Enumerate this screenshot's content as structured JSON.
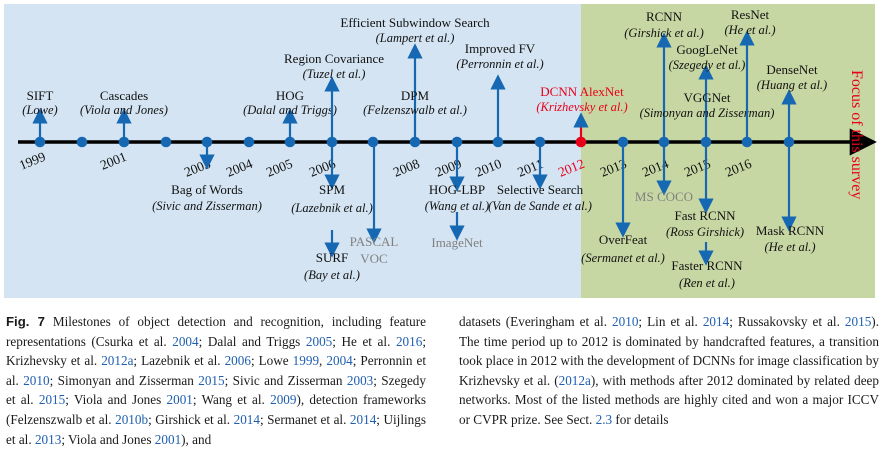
{
  "colors": {
    "left_panel": "#d4e4f2",
    "right_panel": "#c7d7a3",
    "axis": "#000000",
    "dot": "#1668b3",
    "arrow": "#1668b3",
    "red": "#e8001a",
    "gray_text": "#808080",
    "label": "#111111"
  },
  "timeline": {
    "years": [
      "1999",
      "2001",
      "2003",
      "2004",
      "2005",
      "2006",
      "2008",
      "2009",
      "2010",
      "2011",
      "2012",
      "2013",
      "2014",
      "2015",
      "2016"
    ],
    "focus_label": "Focus of this survey"
  },
  "milestones": [
    {
      "name": "SIFT",
      "authors": "(Lowe)",
      "dir": "up"
    },
    {
      "name": "Cascades",
      "authors": "(Viola and Jones)",
      "dir": "up"
    },
    {
      "name": "HOG",
      "authors": "(Dalal and Triggs)",
      "dir": "up"
    },
    {
      "name": "Region Covariance",
      "authors": "(Tuzel et al.)",
      "dir": "up"
    },
    {
      "name": "Efficient Subwindow Search",
      "authors": "(Lampert et al.)",
      "dir": "up"
    },
    {
      "name": "DPM",
      "authors": "(Felzenszwalb et al.)",
      "dir": "up"
    },
    {
      "name": "Improved FV",
      "authors": "(Perronnin et al.)",
      "dir": "up"
    },
    {
      "name": "DCNN AlexNet",
      "authors": "(Krizhevsky et al.)",
      "dir": "up",
      "highlight": true
    },
    {
      "name": "RCNN",
      "authors": "(Girshick et al.)",
      "dir": "up"
    },
    {
      "name": "GoogLeNet",
      "authors": "(Szegedy et al.)",
      "dir": "up"
    },
    {
      "name": "VGGNet",
      "authors": "(Simonyan and Zisserman)",
      "dir": "up"
    },
    {
      "name": "ResNet",
      "authors": "(He et al.)",
      "dir": "up"
    },
    {
      "name": "DenseNet",
      "authors": "(Huang et al.)",
      "dir": "up"
    },
    {
      "name": "Bag of Words",
      "authors": "(Sivic and Zisserman)",
      "dir": "down"
    },
    {
      "name": "SPM",
      "authors": "(Lazebnik et al.)",
      "dir": "down"
    },
    {
      "name": "SURF",
      "authors": "(Bay et al.)",
      "dir": "down"
    },
    {
      "name": "PASCAL VOC",
      "dataset": true,
      "dir": "down"
    },
    {
      "name": "HOG-LBP",
      "authors": "(Wang et al.)",
      "dir": "down"
    },
    {
      "name": "ImageNet",
      "dataset": true,
      "dir": "down"
    },
    {
      "name": "Selective Search",
      "authors": "(Van de Sande et al.)",
      "dir": "down"
    },
    {
      "name": "OverFeat",
      "authors": "(Sermanet et al.)",
      "dir": "down"
    },
    {
      "name": "MS COCO",
      "dataset": true,
      "dir": "down"
    },
    {
      "name": "Fast RCNN",
      "authors": "(Ross Girshick)",
      "dir": "down"
    },
    {
      "name": "Faster RCNN",
      "authors": "(Ren et al.)",
      "dir": "down"
    },
    {
      "name": "Mask RCNN",
      "authors": "(He et al.)",
      "dir": "down"
    }
  ],
  "caption": {
    "fig_label": "Fig. 7",
    "left_parts": [
      {
        "t": "  Milestones of object detection and recognition, including feature representations (Csurka et al. "
      },
      {
        "t": "2004",
        "c": 1
      },
      {
        "t": "; Dalal and Triggs "
      },
      {
        "t": "2005",
        "c": 1
      },
      {
        "t": "; He et al. "
      },
      {
        "t": "2016",
        "c": 1
      },
      {
        "t": "; Krizhevsky et al. "
      },
      {
        "t": "2012a",
        "c": 1
      },
      {
        "t": "; Lazebnik et al. "
      },
      {
        "t": "2006",
        "c": 1
      },
      {
        "t": "; Lowe "
      },
      {
        "t": "1999",
        "c": 1
      },
      {
        "t": ", "
      },
      {
        "t": "2004",
        "c": 1
      },
      {
        "t": "; Perronnin et al. "
      },
      {
        "t": "2010",
        "c": 1
      },
      {
        "t": "; Simonyan and Zisserman "
      },
      {
        "t": "2015",
        "c": 1
      },
      {
        "t": "; Sivic and Zisserman "
      },
      {
        "t": "2003",
        "c": 1
      },
      {
        "t": "; Szegedy et al. "
      },
      {
        "t": "2015",
        "c": 1
      },
      {
        "t": "; Viola and Jones "
      },
      {
        "t": "2001",
        "c": 1
      },
      {
        "t": "; Wang et al. "
      },
      {
        "t": "2009",
        "c": 1
      },
      {
        "t": "), detection frameworks (Felzenszwalb et al. "
      },
      {
        "t": "2010b",
        "c": 1
      },
      {
        "t": "; Girshick et al. "
      },
      {
        "t": "2014",
        "c": 1
      },
      {
        "t": "; Sermanet et al. "
      },
      {
        "t": "2014",
        "c": 1
      },
      {
        "t": "; Uijlings et al. "
      },
      {
        "t": "2013",
        "c": 1
      },
      {
        "t": "; Viola and Jones "
      },
      {
        "t": "2001",
        "c": 1
      },
      {
        "t": "), and"
      }
    ],
    "right_parts": [
      {
        "t": "datasets (Everingham et al. "
      },
      {
        "t": "2010",
        "c": 1
      },
      {
        "t": "; Lin et al. "
      },
      {
        "t": "2014",
        "c": 1
      },
      {
        "t": "; Russakovsky et al. "
      },
      {
        "t": "2015",
        "c": 1
      },
      {
        "t": "). The time period up to 2012 is dominated by handcrafted features, a transition took place in 2012 with the development of DCNNs for image classification by Krizhevsky et al. ("
      },
      {
        "t": "2012a",
        "c": 1
      },
      {
        "t": "), with methods after 2012 dominated by related deep networks. Most of the listed methods are highly cited and won a major ICCV or CVPR prize. See Sect. "
      },
      {
        "t": "2.3",
        "c": 1
      },
      {
        "t": " for details"
      }
    ]
  }
}
